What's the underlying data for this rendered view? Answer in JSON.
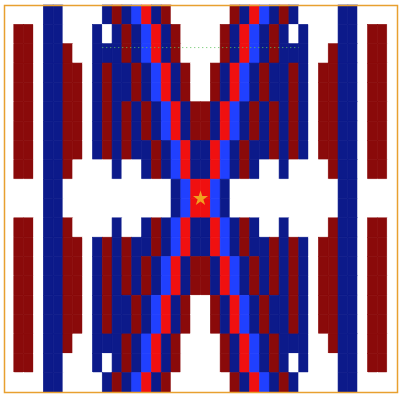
{
  "chart_data": {
    "type": "heatmap",
    "tick_labels": false,
    "levels": [
      -2,
      -1,
      0,
      1,
      2
    ],
    "colors": [
      "#2040ff",
      "#0c1a8a",
      "#ffffff",
      "#8a0a0a",
      "#f01010"
    ],
    "cells": [
      [
        0,
        0,
        0,
        0,
        -1,
        -1,
        0,
        0,
        0,
        0,
        -1,
        1,
        -1,
        -2,
        2,
        -1,
        1,
        0,
        0,
        0,
        0,
        0,
        0,
        1,
        -1,
        2,
        -2,
        -1,
        1,
        -1,
        0,
        0,
        0,
        0,
        -1,
        -1,
        0,
        0,
        0,
        0
      ],
      [
        0,
        1,
        1,
        0,
        -1,
        -1,
        0,
        0,
        0,
        -1,
        0,
        -1,
        1,
        -1,
        -2,
        2,
        -1,
        1,
        0,
        0,
        0,
        0,
        1,
        -1,
        2,
        -2,
        -1,
        1,
        -1,
        0,
        -1,
        0,
        0,
        0,
        -1,
        -1,
        0,
        1,
        1,
        0
      ],
      [
        0,
        1,
        1,
        0,
        -1,
        -1,
        1,
        0,
        0,
        -1,
        -1,
        -1,
        1,
        -1,
        -2,
        2,
        -1,
        1,
        0,
        0,
        0,
        0,
        1,
        -1,
        2,
        -2,
        -1,
        1,
        -1,
        -1,
        -1,
        0,
        0,
        1,
        -1,
        -1,
        0,
        1,
        1,
        0
      ],
      [
        0,
        1,
        1,
        0,
        -1,
        -1,
        1,
        1,
        0,
        -1,
        1,
        -1,
        -1,
        1,
        -1,
        -2,
        2,
        -1,
        1,
        0,
        0,
        1,
        -1,
        2,
        -2,
        -1,
        1,
        -1,
        -1,
        1,
        -1,
        0,
        1,
        1,
        -1,
        -1,
        0,
        1,
        1,
        0
      ],
      [
        0,
        1,
        1,
        0,
        -1,
        -1,
        1,
        1,
        0,
        -1,
        1,
        -1,
        -1,
        1,
        -1,
        -2,
        2,
        -1,
        1,
        0,
        0,
        1,
        -1,
        2,
        -2,
        -1,
        1,
        -1,
        -1,
        1,
        -1,
        0,
        1,
        1,
        -1,
        -1,
        0,
        1,
        1,
        0
      ],
      [
        0,
        1,
        1,
        0,
        -1,
        -1,
        1,
        1,
        0,
        -1,
        1,
        -1,
        1,
        -1,
        1,
        -1,
        -2,
        2,
        -1,
        1,
        1,
        -1,
        2,
        -2,
        -1,
        1,
        -1,
        1,
        -1,
        1,
        -1,
        0,
        1,
        1,
        -1,
        -1,
        0,
        1,
        1,
        0
      ],
      [
        0,
        1,
        1,
        0,
        -1,
        -1,
        1,
        1,
        0,
        -1,
        1,
        -1,
        1,
        -1,
        1,
        -1,
        -2,
        2,
        -1,
        1,
        1,
        -1,
        2,
        -2,
        -1,
        1,
        -1,
        1,
        -1,
        1,
        -1,
        0,
        1,
        1,
        -1,
        -1,
        0,
        1,
        1,
        0
      ],
      [
        0,
        1,
        1,
        0,
        -1,
        -1,
        1,
        1,
        0,
        -1,
        1,
        -1,
        1,
        -1,
        -1,
        1,
        -1,
        -2,
        2,
        -1,
        -1,
        2,
        -2,
        -1,
        1,
        -1,
        -1,
        1,
        -1,
        1,
        -1,
        0,
        1,
        1,
        -1,
        -1,
        0,
        1,
        1,
        0
      ],
      [
        0,
        1,
        1,
        0,
        -1,
        -1,
        1,
        0,
        0,
        0,
        0,
        -1,
        0,
        0,
        -1,
        1,
        -1,
        -2,
        2,
        -1,
        -1,
        2,
        -2,
        -1,
        1,
        -1,
        0,
        0,
        -1,
        0,
        0,
        0,
        0,
        1,
        -1,
        -1,
        0,
        1,
        1,
        0
      ],
      [
        0,
        0,
        0,
        0,
        -1,
        -1,
        0,
        0,
        0,
        0,
        0,
        0,
        0,
        0,
        0,
        0,
        0,
        -1,
        -2,
        2,
        2,
        -2,
        -1,
        0,
        0,
        0,
        0,
        0,
        0,
        0,
        0,
        0,
        0,
        0,
        -1,
        -1,
        0,
        0,
        0,
        0
      ],
      [
        0,
        0,
        0,
        0,
        -1,
        -1,
        0,
        0,
        0,
        0,
        0,
        0,
        0,
        0,
        0,
        0,
        0,
        -1,
        -2,
        2,
        2,
        -2,
        -1,
        0,
        0,
        0,
        0,
        0,
        0,
        0,
        0,
        0,
        0,
        0,
        -1,
        -1,
        0,
        0,
        0,
        0
      ],
      [
        0,
        1,
        1,
        0,
        -1,
        -1,
        1,
        0,
        0,
        0,
        0,
        -1,
        0,
        0,
        -1,
        1,
        -1,
        -2,
        2,
        -1,
        -1,
        2,
        -2,
        -1,
        1,
        -1,
        0,
        0,
        -1,
        0,
        0,
        0,
        0,
        1,
        -1,
        -1,
        0,
        1,
        1,
        0
      ],
      [
        0,
        1,
        1,
        0,
        -1,
        -1,
        1,
        1,
        0,
        -1,
        1,
        -1,
        1,
        -1,
        -1,
        1,
        -1,
        -2,
        2,
        -1,
        -1,
        2,
        -2,
        -1,
        1,
        -1,
        -1,
        1,
        -1,
        1,
        -1,
        0,
        1,
        1,
        -1,
        -1,
        0,
        1,
        1,
        0
      ],
      [
        0,
        1,
        1,
        0,
        -1,
        -1,
        1,
        1,
        0,
        -1,
        1,
        -1,
        1,
        -1,
        1,
        -1,
        -2,
        2,
        -1,
        1,
        1,
        -1,
        2,
        -2,
        -1,
        1,
        -1,
        1,
        -1,
        1,
        -1,
        0,
        1,
        1,
        -1,
        -1,
        0,
        1,
        1,
        0
      ],
      [
        0,
        1,
        1,
        0,
        -1,
        -1,
        1,
        1,
        0,
        -1,
        1,
        -1,
        1,
        -1,
        1,
        -1,
        -2,
        2,
        -1,
        1,
        1,
        -1,
        2,
        -2,
        -1,
        1,
        -1,
        1,
        -1,
        1,
        -1,
        0,
        1,
        1,
        -1,
        -1,
        0,
        1,
        1,
        0
      ],
      [
        0,
        1,
        1,
        0,
        -1,
        -1,
        1,
        1,
        0,
        -1,
        1,
        -1,
        -1,
        1,
        -1,
        -2,
        2,
        -1,
        1,
        0,
        0,
        1,
        -1,
        2,
        -2,
        -1,
        1,
        -1,
        -1,
        1,
        -1,
        0,
        1,
        1,
        -1,
        -1,
        0,
        1,
        1,
        0
      ],
      [
        0,
        1,
        1,
        0,
        -1,
        -1,
        1,
        1,
        0,
        -1,
        1,
        -1,
        -1,
        1,
        -1,
        -2,
        2,
        -1,
        1,
        0,
        0,
        1,
        -1,
        2,
        -2,
        -1,
        1,
        -1,
        -1,
        1,
        -1,
        0,
        1,
        1,
        -1,
        -1,
        0,
        1,
        1,
        0
      ],
      [
        0,
        1,
        1,
        0,
        -1,
        -1,
        1,
        0,
        0,
        -1,
        -1,
        -1,
        1,
        -1,
        -2,
        2,
        -1,
        1,
        0,
        0,
        0,
        0,
        1,
        -1,
        2,
        -2,
        -1,
        1,
        -1,
        -1,
        -1,
        0,
        0,
        1,
        -1,
        -1,
        0,
        1,
        1,
        0
      ],
      [
        0,
        1,
        1,
        0,
        -1,
        -1,
        0,
        0,
        0,
        -1,
        0,
        -1,
        1,
        -1,
        -2,
        2,
        -1,
        1,
        0,
        0,
        0,
        0,
        1,
        -1,
        2,
        -2,
        -1,
        1,
        -1,
        0,
        -1,
        0,
        0,
        0,
        -1,
        -1,
        0,
        1,
        1,
        0
      ],
      [
        0,
        0,
        0,
        0,
        -1,
        -1,
        0,
        0,
        0,
        0,
        -1,
        1,
        -1,
        -2,
        2,
        -1,
        1,
        0,
        0,
        0,
        0,
        0,
        0,
        1,
        -1,
        2,
        -2,
        -1,
        1,
        -1,
        0,
        0,
        0,
        0,
        -1,
        -1,
        0,
        0,
        0,
        0
      ]
    ]
  }
}
